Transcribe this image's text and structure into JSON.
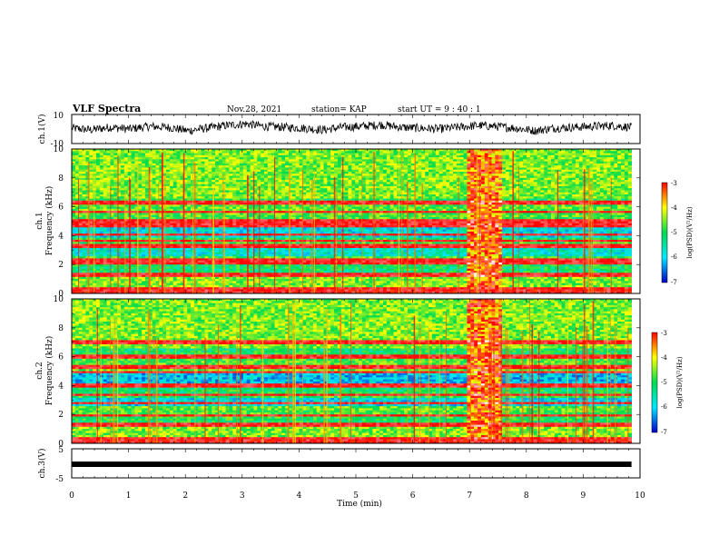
{
  "header": {
    "title": "VLF Spectra",
    "date": "Nov.28, 2021",
    "station": "station= KAP",
    "start_ut": "start  UT =  9 : 40 : 1"
  },
  "chart_data": [
    {
      "type": "line",
      "panel": "ch1-waveform",
      "ylabel": "ch.1(V)",
      "ylim": [
        -10,
        10
      ],
      "ytick_labels": [
        "10",
        "-10"
      ],
      "x_range_min": [
        0,
        9.85
      ],
      "description_of_trace": "noisy waveform roughly between -3 and 6 V",
      "sample_values": [
        1,
        -1,
        2,
        0,
        3,
        2,
        -2,
        1,
        4,
        6,
        3,
        2,
        1,
        -1,
        2,
        3,
        5,
        2,
        1,
        0,
        2,
        4,
        3,
        1,
        -2,
        1,
        2,
        3,
        4,
        2
      ]
    },
    {
      "type": "heatmap",
      "panel": "ch1-spectrogram",
      "ylabel": "ch.1\nFrequency (kHz)",
      "ylabel_lines": [
        "ch.1",
        "Frequency (kHz)"
      ],
      "ylim": [
        0,
        10
      ],
      "ytick_labels": [
        "0",
        "2",
        "4",
        "6",
        "8",
        "10"
      ],
      "x_range_min": [
        0,
        9.85
      ],
      "colorbar_label": "log(PSD)(V²/Hz)",
      "colorbar_ticks": [
        "-3",
        "-4",
        "-5",
        "-6",
        "-7"
      ],
      "colorbar_range": [
        -7,
        -3
      ],
      "bands_khz": [
        0.3,
        1.3,
        2.1,
        2.3,
        3.3,
        3.6,
        4.1,
        4.7,
        5.0,
        5.6,
        6.3
      ],
      "strong_segment_min": [
        6.95,
        7.55
      ]
    },
    {
      "type": "heatmap",
      "panel": "ch2-spectrogram",
      "ylabel": "ch.2\nFrequency (kHz)",
      "ylabel_lines": [
        "ch.2",
        "Frequency (kHz)"
      ],
      "ylim": [
        0,
        10
      ],
      "ytick_labels": [
        "0",
        "2",
        "4",
        "6",
        "8",
        "10"
      ],
      "x_range_min": [
        0,
        9.85
      ],
      "colorbar_label": "log(PSD)(V²/Hz)",
      "colorbar_ticks": [
        "-3",
        "-4",
        "-5",
        "-6",
        "-7"
      ],
      "colorbar_range": [
        -7,
        -3
      ],
      "bands_khz": [
        0.3,
        1.3,
        1.9,
        2.8,
        3.4,
        4.0,
        4.9,
        5.3,
        6.0,
        7.0
      ],
      "strong_segment_min": [
        6.95,
        7.55
      ]
    },
    {
      "type": "line",
      "panel": "ch3-waveform",
      "ylabel": "ch.3(V)",
      "ylim": [
        -5,
        5
      ],
      "ytick_labels": [
        "5",
        "-5"
      ],
      "x_range_min": [
        0,
        9.85
      ],
      "value_v": -0.3
    }
  ],
  "xaxis": {
    "label": "Time  (min)",
    "range": [
      0,
      10
    ],
    "tick_labels": [
      "0",
      "1",
      "2",
      "3",
      "4",
      "5",
      "6",
      "7",
      "8",
      "9",
      "10"
    ]
  },
  "colors": {
    "colormap": [
      "#0000c8",
      "#00e6ff",
      "#00dc50",
      "#ffff00",
      "#ff0000",
      "#ffffff"
    ],
    "axis": "#000000"
  }
}
